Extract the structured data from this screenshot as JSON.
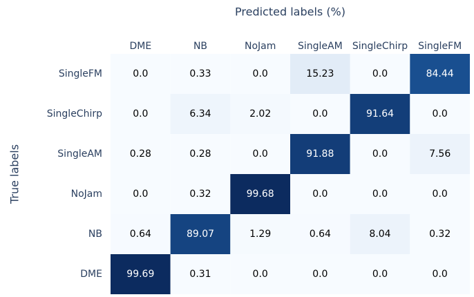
{
  "chart_data": {
    "type": "heatmap",
    "title": "Predicted labels (%)",
    "y_label": "True labels",
    "x": [
      "DME",
      "NB",
      "NoJam",
      "SingleAM",
      "SingleChirp",
      "SingleFM"
    ],
    "y": [
      "SingleFM",
      "SingleChirp",
      "SingleAM",
      "NoJam",
      "NB",
      "DME"
    ],
    "z": [
      [
        0,
        0.33,
        0,
        15.23,
        0,
        84.44
      ],
      [
        0,
        6.34,
        2.02,
        0,
        91.64,
        0
      ],
      [
        0.28,
        0.28,
        0,
        91.88,
        0,
        7.56
      ],
      [
        0,
        0.32,
        99.68,
        0,
        0,
        0
      ],
      [
        0.64,
        89.07,
        1.29,
        0.64,
        8.04,
        0.32
      ],
      [
        99.69,
        0.31,
        0,
        0,
        0,
        0
      ]
    ],
    "value_labels": [
      [
        "0.0",
        "0.33",
        "0.0",
        "15.23",
        "0.0",
        "84.44"
      ],
      [
        "0.0",
        "6.34",
        "2.02",
        "0.0",
        "91.64",
        "0.0"
      ],
      [
        "0.28",
        "0.28",
        "0.0",
        "91.88",
        "0.0",
        "7.56"
      ],
      [
        "0.0",
        "0.32",
        "99.68",
        "0.0",
        "0.0",
        "0.0"
      ],
      [
        "0.64",
        "89.07",
        "1.29",
        "0.64",
        "8.04",
        "0.32"
      ],
      [
        "99.69",
        "0.31",
        "0.0",
        "0.0",
        "0.0",
        "0.0"
      ]
    ],
    "zlim": [
      0,
      100
    ],
    "colorscale": [
      "#f7fbff",
      "#dbe7f4",
      "#9ac3df",
      "#4a8cc4",
      "#1d5a9e",
      "#0c2a5e"
    ]
  }
}
